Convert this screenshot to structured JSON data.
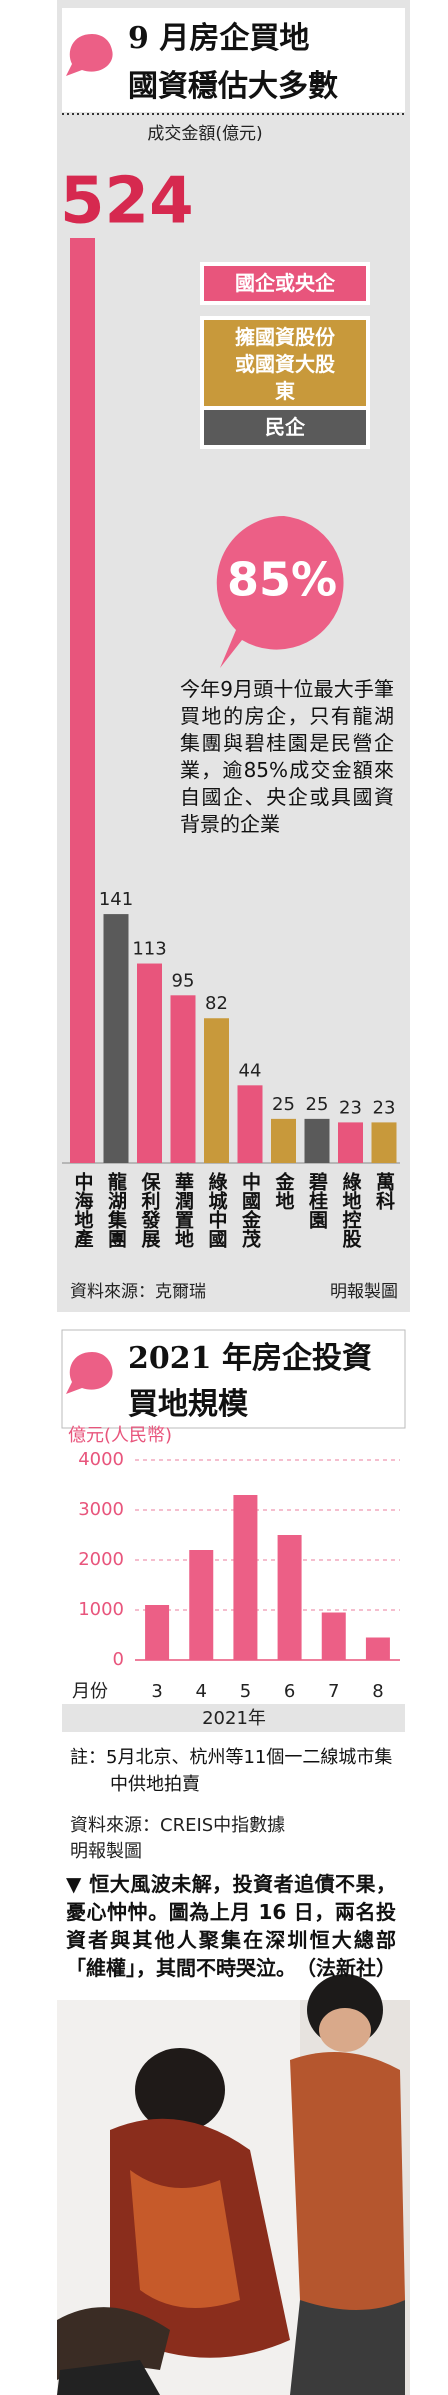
{
  "chart_data": [
    {
      "type": "bar",
      "title": [
        "9 月房企買地",
        "國資穩估大多數"
      ],
      "ylabel": "成交金額(億元)",
      "categories": [
        "中海地產",
        "龍湖集團",
        "保利發展",
        "華潤置地",
        "綠城中國",
        "中國金茂",
        "金地",
        "碧桂園",
        "綠地控股",
        "萬科"
      ],
      "values": [
        524,
        141,
        113,
        95,
        82,
        44,
        25,
        25,
        23,
        23
      ],
      "colors": [
        "#e8557c",
        "#5a5a5a",
        "#e8557c",
        "#e8557c",
        "#c8993b",
        "#e8557c",
        "#c8993b",
        "#5a5a5a",
        "#e8557c",
        "#c8993b"
      ],
      "legend": [
        {
          "name": "國企或央企",
          "color": "#e8557c"
        },
        {
          "name": "擁國資股份或國資大股東",
          "color": "#c8993b"
        },
        {
          "name": "民企",
          "color": "#5a5a5a"
        }
      ],
      "callout": "85%",
      "annotation": "今年9月頭十位最大手筆買地的房企，只有龍湖集團與碧桂園是民營企業，逾85%成交金額來自國企、央企或具國資背景的企業",
      "source": "資料來源：克爾瑞",
      "credit": "明報製圖"
    },
    {
      "type": "bar",
      "title": [
        "2021 年房企投資",
        "買地規模"
      ],
      "ylabel": "億元(人民幣)",
      "category_label": "月份",
      "categories": [
        "3",
        "4",
        "5",
        "6",
        "7",
        "8"
      ],
      "values": [
        1100,
        2200,
        3300,
        2500,
        950,
        450
      ],
      "color": "#ec5f86",
      "ylim": [
        0,
        4000
      ],
      "yticks": [
        0,
        1000,
        2000,
        3000,
        4000
      ],
      "grid": true,
      "xlabel": "2021年",
      "note": "註：5月北京、杭州等11個一二線城市集中供地拍賣",
      "source": "資料來源：CREIS中指數據",
      "credit": "明報製圖"
    }
  ],
  "caption": "▼ 恒大風波未解，投資者追債不果，憂心忡忡。圖為上月 16 日，兩名投資者與其他人聚集在深圳恒大總部「維權」，其間不時哭泣。　（法新社）"
}
